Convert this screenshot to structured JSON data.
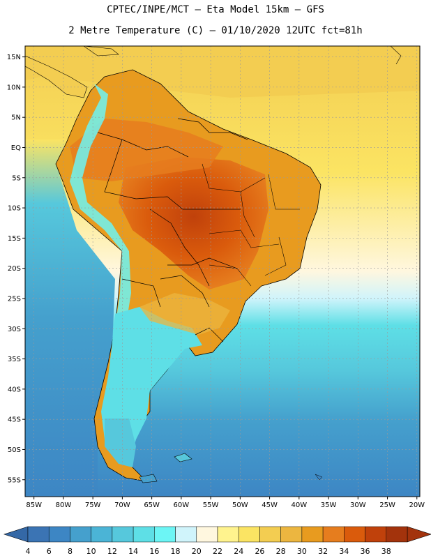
{
  "header": {
    "line1": "CPTEC/INPE/MCT –  Eta Model 15km – GFS",
    "line2": "2 Metre Temperature (C) – 01/10/2020 12UTC fct=81h"
  },
  "axes": {
    "lat_labels": [
      "15N",
      "10N",
      "5N",
      "EQ",
      "5S",
      "10S",
      "15S",
      "20S",
      "25S",
      "30S",
      "35S",
      "40S",
      "45S",
      "50S",
      "55S"
    ],
    "lat_values": [
      15,
      10,
      5,
      0,
      -5,
      -10,
      -15,
      -20,
      -25,
      -30,
      -35,
      -40,
      -45,
      -50,
      -55
    ],
    "lon_labels": [
      "85W",
      "80W",
      "75W",
      "70W",
      "65W",
      "60W",
      "55W",
      "50W",
      "45W",
      "40W",
      "35W",
      "30W",
      "25W",
      "20W"
    ],
    "lon_values": [
      -85,
      -80,
      -75,
      -70,
      -65,
      -60,
      -55,
      -50,
      -45,
      -40,
      -35,
      -30,
      -25,
      -20
    ]
  },
  "colorbar": {
    "labels": [
      "4",
      "6",
      "8",
      "10",
      "12",
      "14",
      "16",
      "18",
      "20",
      "22",
      "24",
      "26",
      "28",
      "30",
      "32",
      "34",
      "36",
      "38"
    ],
    "colors": [
      "#3b74b4",
      "#3d86c4",
      "#45a0cd",
      "#4bb4d6",
      "#56c8dc",
      "#5edfe6",
      "#6cf5f5",
      "#d0f4fb",
      "#fff7df",
      "#fff38e",
      "#fbe463",
      "#f3cd51",
      "#ecb640",
      "#e89b1f",
      "#e67d1e",
      "#da5b0c",
      "#c0410b",
      "#a3330c"
    ],
    "low_arrow_color": "#3468a6",
    "high_arrow_color": "#a3330c"
  },
  "map_colors": {
    "ocean_north": "#f3cd51",
    "ocean_north_light": "#fbe463",
    "ocean_band_white": "#fff7df",
    "ocean_band_light": "#d0f4fb",
    "ocean_cyan": "#5edfe6",
    "ocean_mid": "#56c8dc",
    "ocean_blue": "#45a0cd",
    "ocean_deep": "#3d86c4",
    "land_hot": "#c0410b",
    "land_warm": "#e67d1e",
    "land_orange": "#ecb640",
    "andes_cool": "#6cf5f5",
    "patagonia": "#56c8dc",
    "grid_color": "#9a9a9a"
  }
}
